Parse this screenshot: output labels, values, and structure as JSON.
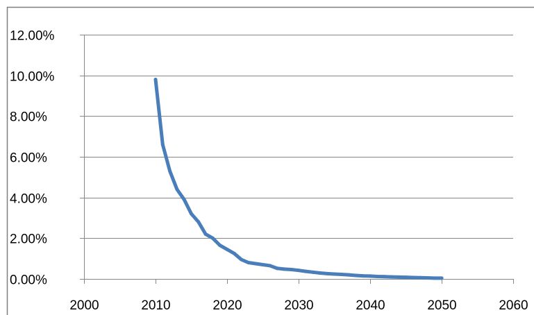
{
  "chart_data": {
    "type": "line",
    "title": "",
    "xlabel": "",
    "ylabel": "",
    "xlim": [
      2000,
      2060
    ],
    "ylim": [
      0,
      0.12
    ],
    "grid": true,
    "legend": "none",
    "x_ticks": [
      {
        "value": 2000,
        "label": "2000"
      },
      {
        "value": 2010,
        "label": "2010"
      },
      {
        "value": 2020,
        "label": "2020"
      },
      {
        "value": 2030,
        "label": "2030"
      },
      {
        "value": 2040,
        "label": "2040"
      },
      {
        "value": 2050,
        "label": "2050"
      },
      {
        "value": 2060,
        "label": "2060"
      }
    ],
    "y_ticks": [
      {
        "value": 0.0,
        "label": "0.00%"
      },
      {
        "value": 0.02,
        "label": "2.00%"
      },
      {
        "value": 0.04,
        "label": "4.00%"
      },
      {
        "value": 0.06,
        "label": "6.00%"
      },
      {
        "value": 0.08,
        "label": "8.00%"
      },
      {
        "value": 0.1,
        "label": "10.00%"
      },
      {
        "value": 0.12,
        "label": "12.00%"
      }
    ],
    "series": [
      {
        "color": "#4A7EBB",
        "x": [
          2010,
          2011,
          2012,
          2013,
          2014,
          2015,
          2016,
          2017,
          2018,
          2019,
          2020,
          2021,
          2022,
          2023,
          2024,
          2025,
          2026,
          2027,
          2028,
          2029,
          2030,
          2031,
          2032,
          2033,
          2034,
          2035,
          2036,
          2037,
          2038,
          2039,
          2040,
          2041,
          2042,
          2043,
          2044,
          2045,
          2046,
          2047,
          2048,
          2049,
          2050
        ],
        "y": [
          0.098,
          0.066,
          0.053,
          0.044,
          0.039,
          0.032,
          0.028,
          0.022,
          0.02,
          0.0165,
          0.0145,
          0.0125,
          0.0095,
          0.008,
          0.0075,
          0.007,
          0.0065,
          0.0052,
          0.0048,
          0.0046,
          0.0042,
          0.0037,
          0.0033,
          0.0029,
          0.0026,
          0.0024,
          0.0022,
          0.002,
          0.0017,
          0.0015,
          0.0014,
          0.0012,
          0.0011,
          0.001,
          0.0009,
          0.0008,
          0.0007,
          0.0006,
          0.0005,
          0.0004,
          0.0004
        ]
      }
    ]
  }
}
